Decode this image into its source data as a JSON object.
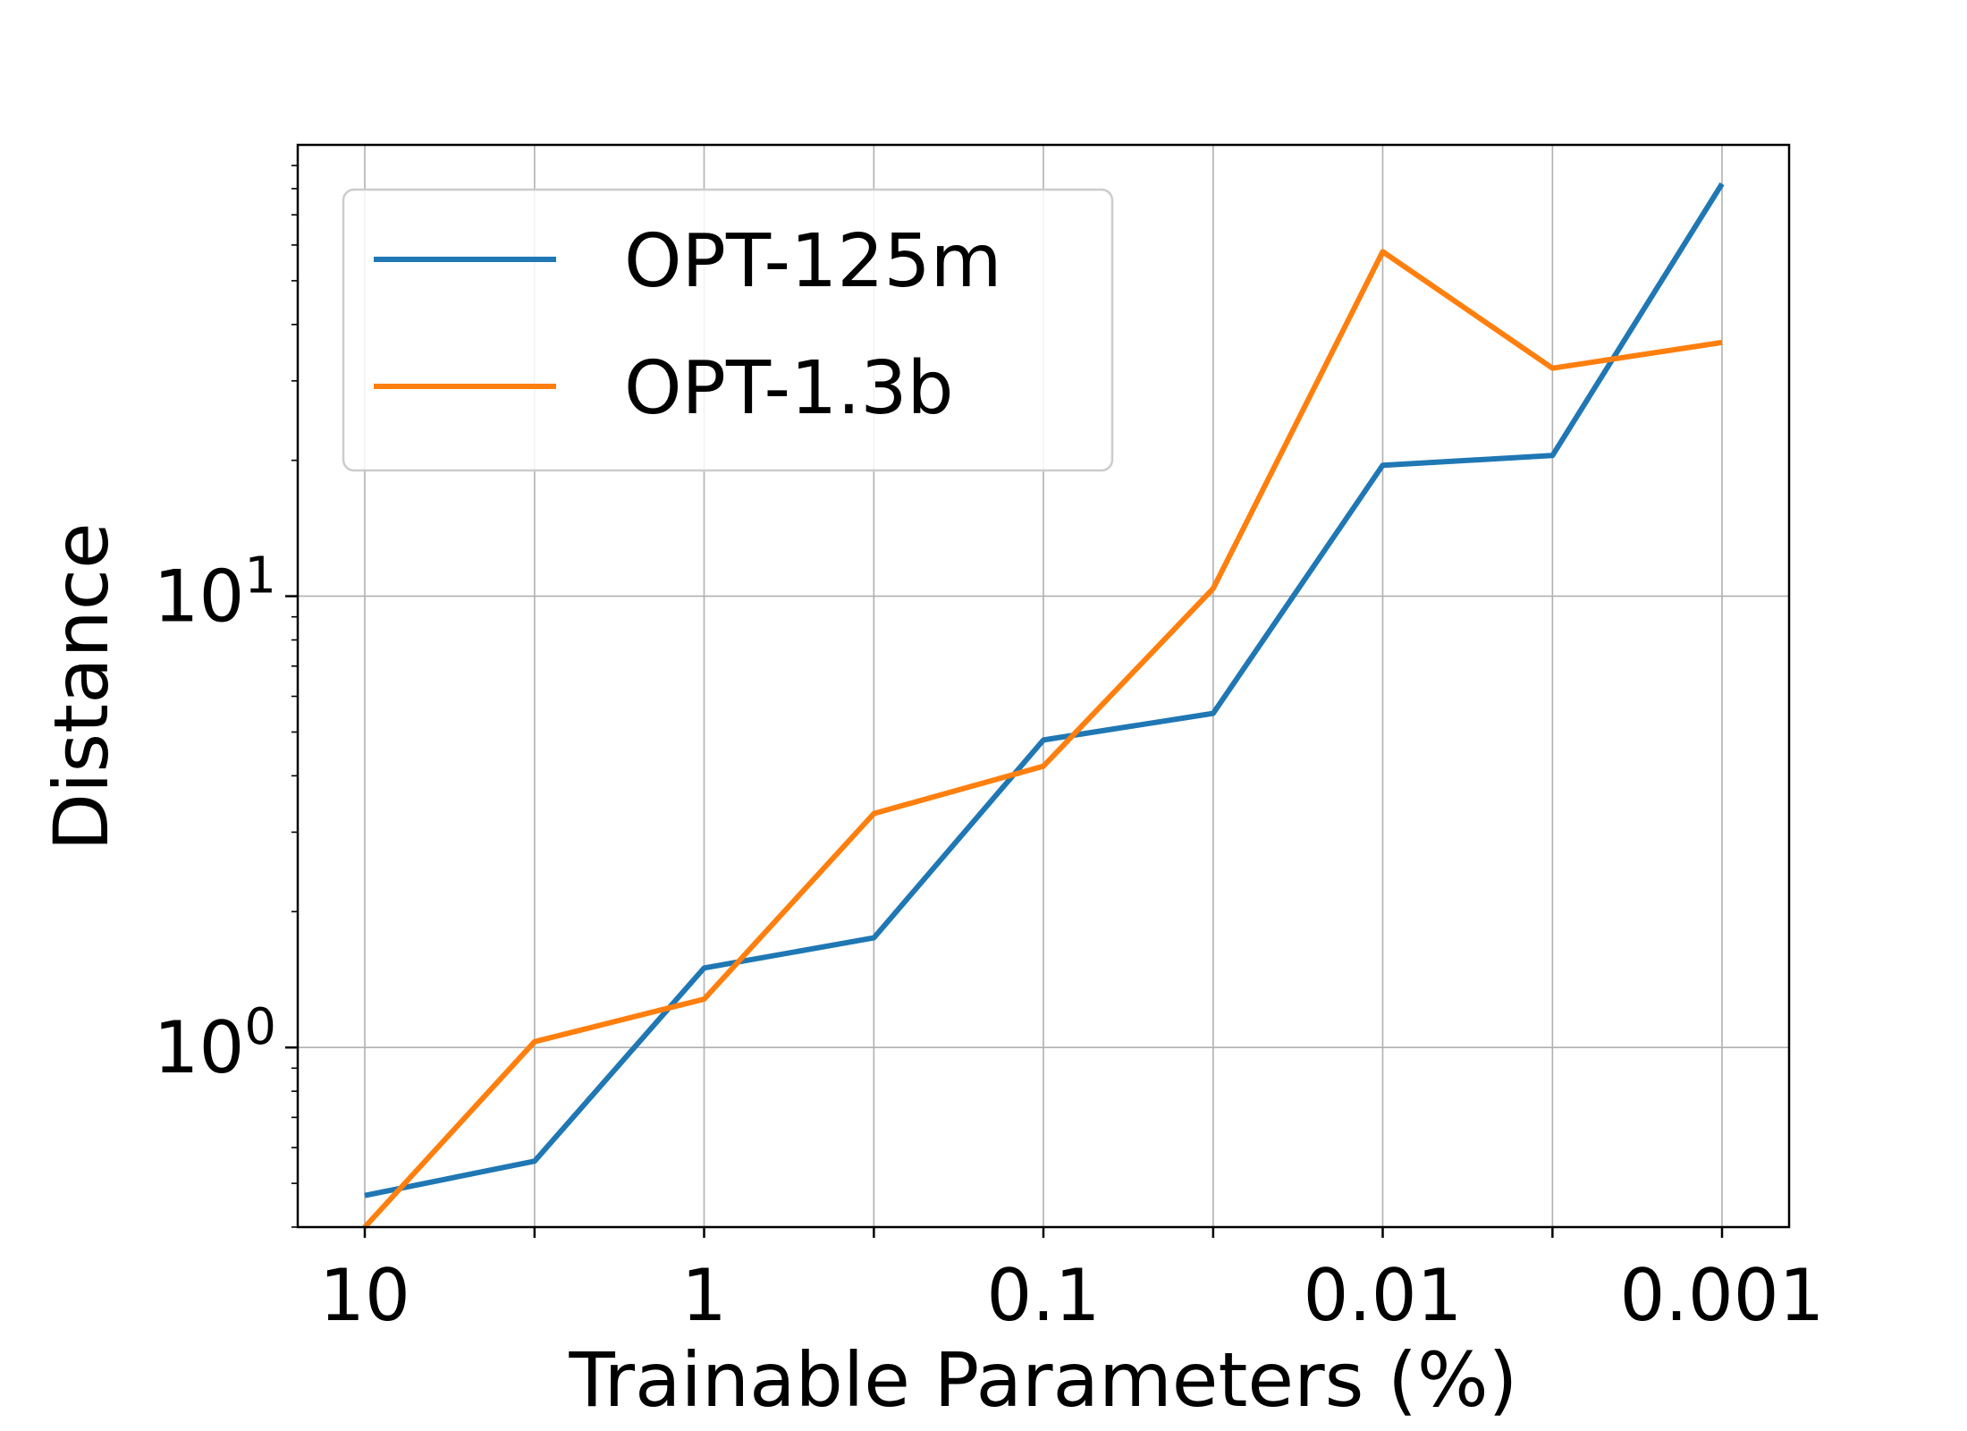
{
  "chart_data": {
    "type": "line",
    "title": "",
    "xlabel": "Trainable Parameters (%)",
    "ylabel": "Distance",
    "x_scale": "log-reversed",
    "y_scale": "log",
    "x": [
      10,
      3.16,
      1,
      0.316,
      0.1,
      0.0316,
      0.01,
      0.00316,
      0.001
    ],
    "x_ticks": [
      {
        "value": 10,
        "label": "10"
      },
      {
        "value": 1,
        "label": "1"
      },
      {
        "value": 0.1,
        "label": "0.1"
      },
      {
        "value": 0.01,
        "label": "0.01"
      },
      {
        "value": 0.001,
        "label": "0.001"
      }
    ],
    "y_ticks": [
      {
        "value": 1,
        "base": "10",
        "exp": "0"
      },
      {
        "value": 10,
        "base": "10",
        "exp": "1"
      }
    ],
    "xlim": [
      10,
      0.001
    ],
    "ylim": [
      0.4,
      100
    ],
    "grid": true,
    "legend_position": "top-left",
    "series": [
      {
        "name": "OPT-125m",
        "color": "#1f77b4",
        "values": [
          0.47,
          0.56,
          1.5,
          1.75,
          4.8,
          5.5,
          19.5,
          20.5,
          82
        ]
      },
      {
        "name": "OPT-1.3b",
        "color": "#ff7f0e",
        "values": [
          0.4,
          1.03,
          1.28,
          3.3,
          4.2,
          10.4,
          58,
          32,
          36.5
        ]
      }
    ]
  }
}
